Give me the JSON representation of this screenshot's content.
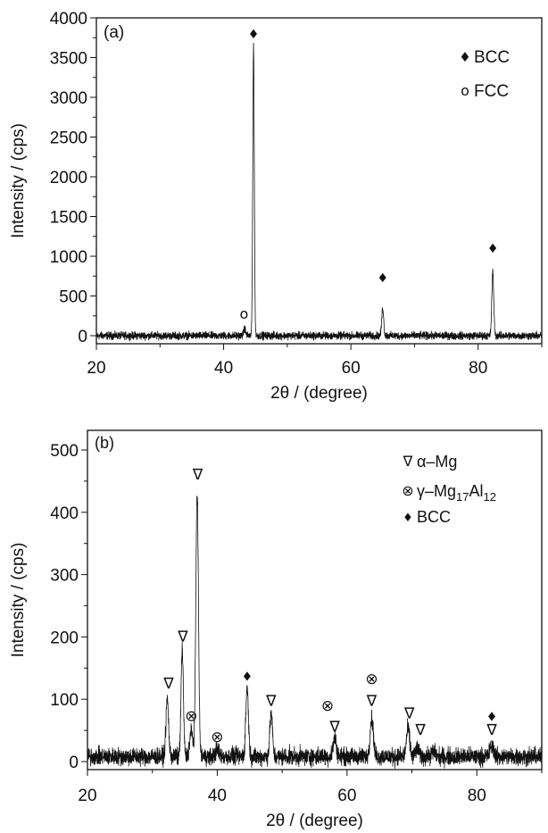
{
  "chart_data": [
    {
      "type": "line",
      "panel_label": "(a)",
      "xlabel": "2θ / (degree)",
      "ylabel": "Intensity / (cps)",
      "xlim": [
        20,
        90
      ],
      "ylim": [
        -100,
        4000
      ],
      "xticks": [
        20,
        40,
        60,
        80
      ],
      "yticks": [
        0,
        500,
        1000,
        1500,
        2000,
        2500,
        3000,
        3500,
        4000
      ],
      "grid": false,
      "color": "#111111",
      "baseline": 0,
      "noise": 35,
      "peaks": [
        {
          "x": 43.3,
          "height": 90,
          "width": 0.15
        },
        {
          "x": 44.7,
          "height": 3650,
          "width": 0.12
        },
        {
          "x": 65.0,
          "height": 350,
          "width": 0.15
        },
        {
          "x": 82.3,
          "height": 800,
          "width": 0.15
        }
      ],
      "legend": {
        "placement": "top-right",
        "entries": [
          {
            "symbol": "♦",
            "label": "BCC"
          },
          {
            "symbol": "o",
            "label": "FCC"
          }
        ]
      },
      "markers": [
        {
          "symbol": "o",
          "x": 43.2,
          "y": 270
        },
        {
          "symbol": "♦",
          "x": 44.7,
          "y": 3800
        },
        {
          "symbol": "♦",
          "x": 65.0,
          "y": 730
        },
        {
          "symbol": "♦",
          "x": 82.3,
          "y": 1100
        }
      ]
    },
    {
      "type": "line",
      "panel_label": "(b)",
      "xlabel": "2θ / (degree)",
      "ylabel": "Intensity / (cps)",
      "xlim": [
        20,
        90
      ],
      "ylim": [
        -12,
        530
      ],
      "xticks": [
        20,
        40,
        60,
        80
      ],
      "yticks": [
        0,
        100,
        200,
        300,
        400,
        500
      ],
      "grid": false,
      "color": "#111111",
      "baseline": 8,
      "noise": 10,
      "peaks": [
        {
          "x": 32.3,
          "height": 92,
          "width": 0.2
        },
        {
          "x": 34.6,
          "height": 172,
          "width": 0.18
        },
        {
          "x": 36.0,
          "height": 40,
          "width": 0.25
        },
        {
          "x": 36.9,
          "height": 425,
          "width": 0.2
        },
        {
          "x": 40.0,
          "height": 10,
          "width": 0.3
        },
        {
          "x": 44.6,
          "height": 112,
          "width": 0.2
        },
        {
          "x": 48.3,
          "height": 70,
          "width": 0.2
        },
        {
          "x": 58.1,
          "height": 30,
          "width": 0.25
        },
        {
          "x": 63.8,
          "height": 62,
          "width": 0.25
        },
        {
          "x": 69.4,
          "height": 45,
          "width": 0.25
        },
        {
          "x": 70.8,
          "height": 12,
          "width": 0.3
        },
        {
          "x": 73.3,
          "height": 8,
          "width": 0.3
        },
        {
          "x": 82.3,
          "height": 17,
          "width": 0.3
        }
      ],
      "legend": {
        "placement": "top-right",
        "entries": [
          {
            "symbol": "∇",
            "label": "α–Mg",
            "sub": ""
          },
          {
            "symbol": "⊗",
            "label": "γ–Mg",
            "sub1": "17",
            "mid": "Al",
            "sub2": "12"
          },
          {
            "symbol": "♦",
            "label": "BCC"
          }
        ]
      },
      "markers": [
        {
          "symbol": "∇",
          "x": 32.5,
          "y": 125
        },
        {
          "symbol": "∇",
          "x": 34.7,
          "y": 200
        },
        {
          "symbol": "⊗",
          "x": 36.0,
          "y": 72
        },
        {
          "symbol": "∇",
          "x": 37.0,
          "y": 460
        },
        {
          "symbol": "⊗",
          "x": 40.0,
          "y": 39
        },
        {
          "symbol": "♦",
          "x": 44.6,
          "y": 137
        },
        {
          "symbol": "∇",
          "x": 48.3,
          "y": 97
        },
        {
          "symbol": "⊗",
          "x": 57.0,
          "y": 89
        },
        {
          "symbol": "∇",
          "x": 58.1,
          "y": 55
        },
        {
          "symbol": "⊗",
          "x": 63.8,
          "y": 132
        },
        {
          "symbol": "∇",
          "x": 63.8,
          "y": 97
        },
        {
          "symbol": "∇",
          "x": 69.6,
          "y": 77
        },
        {
          "symbol": "∇",
          "x": 71.3,
          "y": 50
        },
        {
          "symbol": "♦",
          "x": 82.3,
          "y": 72
        },
        {
          "symbol": "∇",
          "x": 82.3,
          "y": 50
        }
      ]
    }
  ]
}
